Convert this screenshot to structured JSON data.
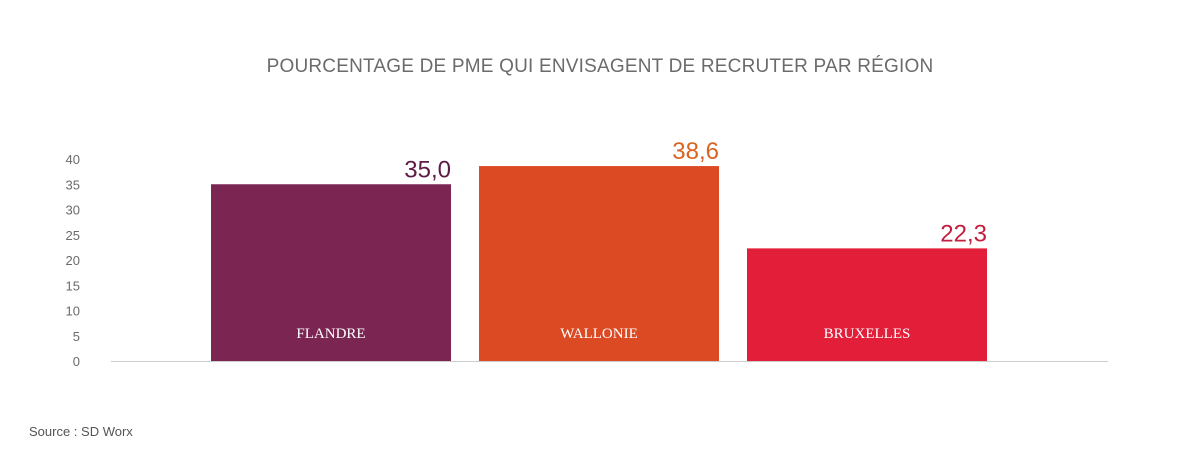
{
  "chart_data": {
    "type": "bar",
    "title": "POURCENTAGE DE PME QUI ENVISAGENT DE RECRUTER PAR RÉGION",
    "categories": [
      "FLANDRE",
      "WALLONIE",
      "BRUXELLES"
    ],
    "values": [
      35.0,
      38.6,
      22.3
    ],
    "value_labels": [
      "35,0",
      "38,6",
      "22,3"
    ],
    "colors": [
      "#7b2553",
      "#dc4a23",
      "#e21e39"
    ],
    "label_colors": [
      "#5c1c45",
      "#d9631f",
      "#c41e3e"
    ],
    "ylim": [
      0,
      40
    ],
    "yticks": [
      "0",
      "5",
      "10",
      "15",
      "20",
      "25",
      "30",
      "35",
      "40"
    ],
    "ytick_values": [
      0,
      5,
      10,
      15,
      20,
      25,
      30,
      35,
      40
    ],
    "grid": false,
    "axis_color": "#cccccc"
  },
  "source": "Source : SD Worx"
}
